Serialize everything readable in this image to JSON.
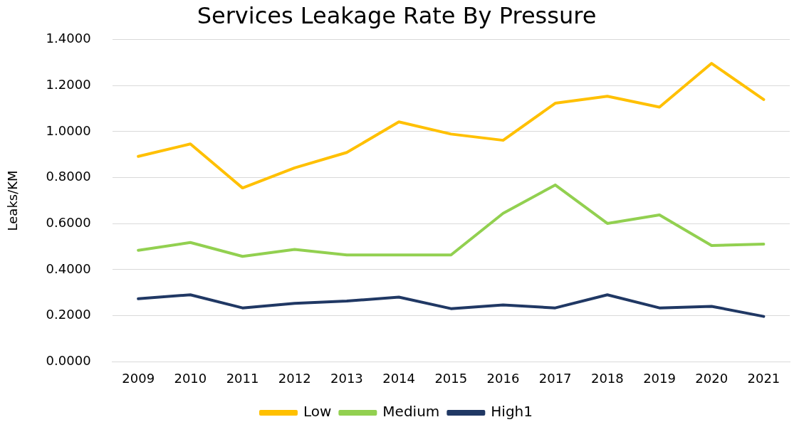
{
  "chart_data": {
    "type": "line",
    "title": "Services Leakage Rate By Pressure",
    "ylabel": "Leaks/KM",
    "categories": [
      "2009",
      "2010",
      "2011",
      "2012",
      "2013",
      "2014",
      "2015",
      "2016",
      "2017",
      "2018",
      "2019",
      "2020",
      "2021"
    ],
    "series": [
      {
        "name": "Low",
        "color": "#ffc000",
        "values": [
          0.892,
          0.946,
          0.755,
          0.842,
          0.909,
          1.042,
          0.989,
          0.962,
          1.123,
          1.153,
          1.106,
          1.296,
          1.139
        ]
      },
      {
        "name": "Medium",
        "color": "#92d050",
        "values": [
          0.484,
          0.518,
          0.458,
          0.488,
          0.464,
          0.464,
          0.464,
          0.645,
          0.768,
          0.601,
          0.638,
          0.505,
          0.511
        ]
      },
      {
        "name": "High1",
        "color": "#203864",
        "values": [
          0.274,
          0.291,
          0.234,
          0.254,
          0.264,
          0.281,
          0.231,
          0.247,
          0.234,
          0.291,
          0.234,
          0.241,
          0.197
        ]
      }
    ],
    "ylim": [
      0,
      1.4
    ],
    "yticks": [
      {
        "value": 0,
        "label": "0.0000"
      },
      {
        "value": 0.2,
        "label": "0.2000"
      },
      {
        "value": 0.4,
        "label": "0.4000"
      },
      {
        "value": 0.6,
        "label": "0.6000"
      },
      {
        "value": 0.8,
        "label": "0.8000"
      },
      {
        "value": 1,
        "label": "1.0000"
      },
      {
        "value": 1.2,
        "label": "1.2000"
      },
      {
        "value": 1.4,
        "label": "1.4000"
      }
    ],
    "grid": "y",
    "legend": "bottom",
    "marker": "none",
    "line_style": "solid"
  }
}
